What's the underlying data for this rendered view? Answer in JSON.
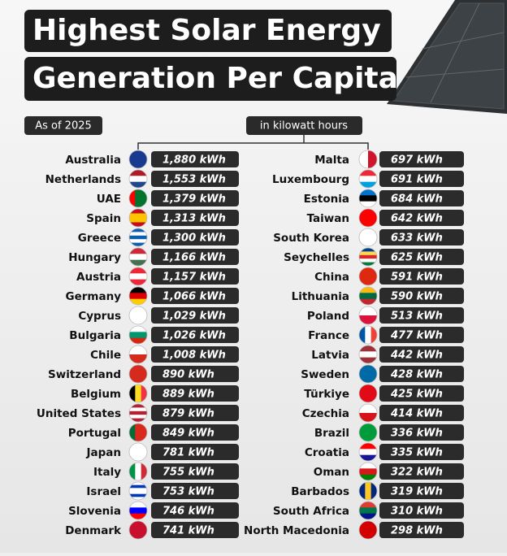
{
  "header": {
    "title_lines": [
      "Highest Solar Energy",
      "Generation Per Capita"
    ],
    "date_label": "As of 2025",
    "unit_label": "in kilowatt hours"
  },
  "columns": [
    {
      "rows": [
        {
          "country": "Australia",
          "value": "1,880 kWh"
        },
        {
          "country": "Netherlands",
          "value": "1,553 kWh"
        },
        {
          "country": "UAE",
          "value": "1,379 kWh"
        },
        {
          "country": "Spain",
          "value": "1,313 kWh"
        },
        {
          "country": "Greece",
          "value": "1,300 kWh"
        },
        {
          "country": "Hungary",
          "value": "1,166 kWh"
        },
        {
          "country": "Austria",
          "value": "1,157 kWh"
        },
        {
          "country": "Germany",
          "value": "1,066 kWh"
        },
        {
          "country": "Cyprus",
          "value": "1,029 kWh"
        },
        {
          "country": "Bulgaria",
          "value": "1,026 kWh"
        },
        {
          "country": "Chile",
          "value": "1,008 kWh"
        },
        {
          "country": "Switzerland",
          "value": "890 kWh"
        },
        {
          "country": "Belgium",
          "value": "889 kWh"
        },
        {
          "country": "United States",
          "value": "879 kWh"
        },
        {
          "country": "Portugal",
          "value": "849 kWh"
        },
        {
          "country": "Japan",
          "value": "781 kWh"
        },
        {
          "country": "Italy",
          "value": "755 kWh"
        },
        {
          "country": "Israel",
          "value": "753 kWh"
        },
        {
          "country": "Slovenia",
          "value": "746 kWh"
        },
        {
          "country": "Denmark",
          "value": "741 kWh"
        }
      ]
    },
    {
      "rows": [
        {
          "country": "Malta",
          "value": "697 kWh"
        },
        {
          "country": "Luxembourg",
          "value": "691 kWh"
        },
        {
          "country": "Estonia",
          "value": "684 kWh"
        },
        {
          "country": "Taiwan",
          "value": "642 kWh"
        },
        {
          "country": "South Korea",
          "value": "633 kWh"
        },
        {
          "country": "Seychelles",
          "value": "625 kWh"
        },
        {
          "country": "China",
          "value": "591 kWh"
        },
        {
          "country": "Lithuania",
          "value": "590 kWh"
        },
        {
          "country": "Poland",
          "value": "513 kWh"
        },
        {
          "country": "France",
          "value": "477 kWh"
        },
        {
          "country": "Latvia",
          "value": "442 kWh"
        },
        {
          "country": "Sweden",
          "value": "428 kWh"
        },
        {
          "country": "Türkiye",
          "value": "425 kWh"
        },
        {
          "country": "Czechia",
          "value": "414 kWh"
        },
        {
          "country": "Brazil",
          "value": "336 kWh"
        },
        {
          "country": "Croatia",
          "value": "335 kWh"
        },
        {
          "country": "Oman",
          "value": "322 kWh"
        },
        {
          "country": "Barbados",
          "value": "319 kWh"
        },
        {
          "country": "South Africa",
          "value": "310 kWh"
        },
        {
          "country": "North Macedonia",
          "value": "298 kWh"
        }
      ]
    }
  ]
}
